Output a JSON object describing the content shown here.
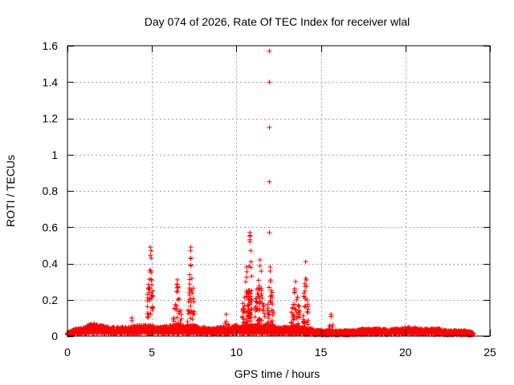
{
  "chart_data": {
    "type": "scatter",
    "title": "Day 074 of 2026, Rate Of TEC Index for receiver wlal",
    "xlabel": "GPS time / hours",
    "ylabel": "ROTI / TECUs",
    "xlim": [
      0,
      25
    ],
    "ylim": [
      0,
      1.6
    ],
    "xticks": [
      0,
      5,
      10,
      15,
      20,
      25
    ],
    "xtick_labels": [
      "0",
      "5",
      "10",
      "15",
      "20",
      "25"
    ],
    "yticks": [
      0,
      0.2,
      0.4,
      0.6,
      0.8,
      1,
      1.2,
      1.4,
      1.6
    ],
    "ytick_labels": [
      "0",
      "0.2",
      "0.4",
      "0.6",
      "0.8",
      "1",
      "1.2",
      "1.4",
      "1.6"
    ],
    "grid": true,
    "marker": "plus",
    "color": "#ff0000",
    "series": [
      {
        "name": "ROTI",
        "baseline": [
          [
            0.0,
            0.02
          ],
          [
            0.5,
            0.04
          ],
          [
            1.0,
            0.05
          ],
          [
            1.5,
            0.07
          ],
          [
            2.0,
            0.06
          ],
          [
            2.5,
            0.05
          ],
          [
            3.0,
            0.05
          ],
          [
            3.5,
            0.05
          ],
          [
            4.0,
            0.06
          ],
          [
            4.5,
            0.06
          ],
          [
            5.0,
            0.06
          ],
          [
            5.5,
            0.05
          ],
          [
            6.0,
            0.06
          ],
          [
            6.5,
            0.06
          ],
          [
            7.0,
            0.06
          ],
          [
            7.5,
            0.06
          ],
          [
            8.0,
            0.05
          ],
          [
            8.5,
            0.04
          ],
          [
            9.0,
            0.05
          ],
          [
            9.5,
            0.05
          ],
          [
            10.0,
            0.06
          ],
          [
            10.5,
            0.06
          ],
          [
            11.0,
            0.06
          ],
          [
            11.5,
            0.06
          ],
          [
            12.0,
            0.06
          ],
          [
            12.5,
            0.05
          ],
          [
            13.0,
            0.05
          ],
          [
            13.5,
            0.06
          ],
          [
            14.0,
            0.05
          ],
          [
            14.5,
            0.04
          ],
          [
            15.0,
            0.03
          ],
          [
            15.5,
            0.03
          ],
          [
            16.0,
            0.03
          ],
          [
            16.5,
            0.03
          ],
          [
            17.0,
            0.03
          ],
          [
            17.5,
            0.04
          ],
          [
            18.0,
            0.04
          ],
          [
            18.5,
            0.04
          ],
          [
            19.0,
            0.04
          ],
          [
            19.5,
            0.04
          ],
          [
            20.0,
            0.05
          ],
          [
            20.5,
            0.05
          ],
          [
            21.0,
            0.04
          ],
          [
            21.5,
            0.04
          ],
          [
            22.0,
            0.04
          ],
          [
            22.5,
            0.03
          ],
          [
            23.0,
            0.03
          ],
          [
            23.5,
            0.03
          ],
          [
            24.0,
            0.02
          ]
        ],
        "peaks": [
          {
            "x": 3.8,
            "max": 0.1,
            "width": 0.15,
            "density": 8
          },
          {
            "x": 4.9,
            "max": 0.49,
            "width": 0.18,
            "density": 40
          },
          {
            "x": 6.5,
            "max": 0.31,
            "width": 0.25,
            "density": 40
          },
          {
            "x": 7.3,
            "max": 0.49,
            "width": 0.2,
            "density": 40
          },
          {
            "x": 9.4,
            "max": 0.12,
            "width": 0.15,
            "density": 10
          },
          {
            "x": 10.6,
            "max": 0.38,
            "width": 0.25,
            "density": 45
          },
          {
            "x": 10.8,
            "max": 0.57,
            "width": 0.15,
            "density": 40
          },
          {
            "x": 11.4,
            "max": 0.42,
            "width": 0.3,
            "density": 55
          },
          {
            "x": 12.0,
            "max": 0.38,
            "width": 0.2,
            "density": 45
          },
          {
            "x": 13.5,
            "max": 0.3,
            "width": 0.3,
            "density": 45
          },
          {
            "x": 14.1,
            "max": 0.41,
            "width": 0.15,
            "density": 35
          },
          {
            "x": 15.6,
            "max": 0.12,
            "width": 0.15,
            "density": 10
          }
        ],
        "outliers": [
          [
            11.95,
            1.57
          ],
          [
            11.95,
            1.4
          ],
          [
            11.95,
            1.15
          ],
          [
            11.95,
            0.85
          ],
          [
            11.95,
            0.57
          ],
          [
            10.8,
            0.55
          ],
          [
            10.8,
            0.52
          ],
          [
            10.85,
            0.47
          ],
          [
            7.3,
            0.47
          ],
          [
            7.3,
            0.43
          ],
          [
            4.95,
            0.47
          ],
          [
            4.95,
            0.43
          ],
          [
            4.95,
            0.35
          ]
        ]
      }
    ]
  }
}
